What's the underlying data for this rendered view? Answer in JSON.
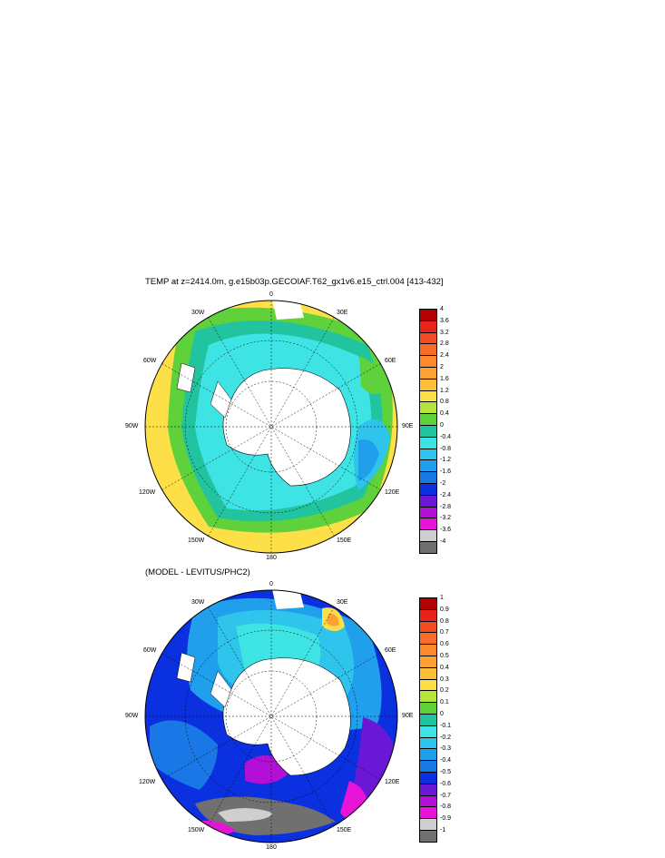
{
  "panels": [
    {
      "title": "TEMP at z=2414.0m, g.e15b03p.GECOIAF.T62_gx1v6.e15_ctrl.004 [413-432]",
      "lon_labels": {
        "top": "0",
        "right_top": "30E",
        "left_top": "30W",
        "right_mid_up": "60E",
        "left_mid_up": "60W",
        "right": "90E",
        "left": "90W",
        "right_low": "120E",
        "left_low": "120W",
        "right_bottom": "150E",
        "left_bottom": "150W",
        "bottom": "180"
      },
      "legend": {
        "values": [
          "4",
          "3.6",
          "3.2",
          "2.8",
          "2.4",
          "2",
          "1.6",
          "1.2",
          "0.8",
          "0.4",
          "0",
          "-0.4",
          "-0.8",
          "-1.2",
          "-1.6",
          "-2",
          "-2.4",
          "-2.8",
          "-3.2",
          "-3.6",
          "-4"
        ],
        "colors": [
          "#b30000",
          "#e8231b",
          "#f24a22",
          "#f86c2a",
          "#fb8a2c",
          "#fca132",
          "#fdbe3c",
          "#fde048",
          "#b6e33c",
          "#5fd13a",
          "#22c4a0",
          "#3ee3e3",
          "#2fc4ec",
          "#20a0ec",
          "#1a78e6",
          "#0a30e0",
          "#6a18d6",
          "#b210d6",
          "#e614d6",
          "#cfcfcf",
          "#707070"
        ]
      }
    },
    {
      "title": "(MODEL - LEVITUS/PHC2)",
      "lon_labels": {
        "top": "0",
        "right_top": "30E",
        "left_top": "30W",
        "right_mid_up": "60E",
        "left_mid_up": "60W",
        "right": "90E",
        "left": "90W",
        "right_low": "120E",
        "left_low": "120W",
        "right_bottom": "150E",
        "left_bottom": "150W",
        "bottom": "180"
      },
      "legend": {
        "values": [
          "1",
          "0.9",
          "0.8",
          "0.7",
          "0.6",
          "0.5",
          "0.4",
          "0.3",
          "0.2",
          "0.1",
          "0",
          "-0.1",
          "-0.2",
          "-0.3",
          "-0.4",
          "-0.5",
          "-0.6",
          "-0.7",
          "-0.8",
          "-0.9",
          "-1"
        ],
        "colors": [
          "#b30000",
          "#e8231b",
          "#f24a22",
          "#f86c2a",
          "#fb8a2c",
          "#fca132",
          "#fdbe3c",
          "#fde048",
          "#b6e33c",
          "#5fd13a",
          "#22c4a0",
          "#3ee3e3",
          "#2fc4ec",
          "#20a0ec",
          "#1a78e6",
          "#0a30e0",
          "#6a18d6",
          "#b210d6",
          "#e614d6",
          "#cfcfcf",
          "#707070"
        ]
      }
    }
  ]
}
